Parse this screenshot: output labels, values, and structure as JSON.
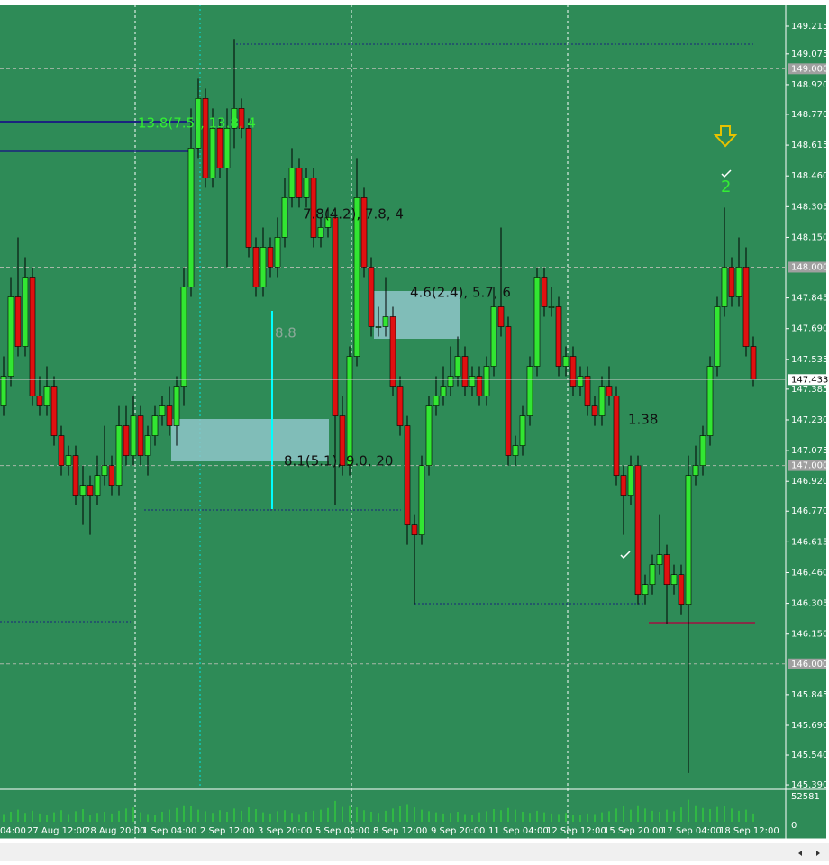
{
  "chart_data": {
    "type": "candlestick",
    "categories": [
      "04:00",
      null,
      null,
      "27 Aug 12:00",
      null,
      null,
      null,
      null,
      null,
      null,
      null,
      "28 Aug 20:00",
      null,
      null,
      null,
      null,
      null,
      null,
      null,
      "1 Sep 04:00",
      null,
      null,
      null,
      null,
      null,
      null,
      null,
      "2 Sep 12:00",
      null,
      null,
      null,
      null,
      null,
      null,
      null,
      "3 Sep 20:00",
      null,
      null,
      null,
      null,
      null,
      null,
      null,
      "5 Sep 04:00",
      null,
      null,
      null,
      null,
      null,
      null,
      null,
      "8 Sep 12:00",
      null,
      null,
      null,
      null,
      null,
      null,
      null,
      "9 Sep 20:00",
      null,
      null,
      null,
      null,
      null,
      null,
      null,
      "11 Sep 04:00",
      null,
      null,
      null,
      null,
      null,
      null,
      null,
      "12 Sep 12:00",
      null,
      null,
      null,
      null,
      null,
      null,
      null,
      "15 Sep 20:00",
      null,
      null,
      null,
      null,
      null,
      null,
      null,
      "17 Sep 04:00",
      null,
      null,
      null,
      null,
      null,
      null,
      null,
      "18 Sep 12:00",
      null,
      null,
      null,
      null,
      null
    ],
    "open": [
      147.3,
      147.45,
      147.85,
      147.6,
      147.95,
      147.35,
      147.3,
      147.4,
      147.15,
      147.0,
      147.05,
      146.85,
      146.9,
      146.85,
      146.95,
      147.0,
      146.9,
      147.2,
      147.05,
      147.25,
      147.05,
      147.15,
      147.25,
      147.3,
      147.2,
      147.4,
      147.9,
      148.6,
      148.85,
      148.45,
      148.7,
      148.5,
      148.7,
      148.8,
      148.7,
      148.1,
      147.9,
      148.1,
      148.0,
      148.15,
      148.35,
      148.5,
      148.35,
      148.45,
      148.15,
      148.2,
      148.25,
      147.25,
      147.0,
      147.55,
      148.35,
      148.0,
      147.7,
      147.7,
      147.75,
      147.4,
      147.2,
      146.7,
      146.65,
      147.0,
      147.3,
      147.35,
      147.4,
      147.45,
      147.55,
      147.4,
      147.45,
      147.35,
      147.5,
      147.8,
      147.7,
      147.05,
      147.1,
      147.25,
      147.5,
      147.95,
      147.8,
      147.8,
      147.5,
      147.55,
      147.4,
      147.45,
      147.3,
      147.25,
      147.4,
      147.35,
      146.95,
      146.85,
      147.0,
      146.35,
      146.4,
      146.5,
      146.55,
      146.4,
      146.45,
      146.3,
      146.95,
      147.0,
      147.15,
      147.5,
      147.8,
      148.0,
      147.85,
      148.0,
      147.6
    ],
    "high": [
      147.55,
      147.95,
      148.15,
      148.05,
      148.0,
      147.45,
      147.5,
      147.45,
      147.2,
      147.1,
      147.1,
      147.0,
      146.95,
      147.05,
      147.2,
      147.05,
      147.3,
      147.3,
      147.35,
      147.3,
      147.2,
      147.3,
      147.35,
      147.4,
      147.45,
      148.0,
      148.8,
      148.95,
      148.9,
      148.8,
      148.75,
      148.8,
      149.15,
      148.85,
      148.75,
      148.15,
      148.2,
      148.15,
      148.25,
      148.45,
      148.6,
      148.55,
      148.5,
      148.5,
      148.25,
      148.3,
      148.3,
      147.35,
      147.6,
      148.55,
      148.4,
      148.05,
      147.8,
      147.95,
      147.8,
      147.45,
      147.25,
      146.75,
      147.05,
      147.35,
      147.45,
      147.5,
      147.6,
      147.65,
      147.6,
      147.5,
      147.5,
      147.55,
      147.9,
      148.2,
      147.75,
      147.15,
      147.3,
      147.55,
      148.0,
      148.0,
      147.9,
      147.85,
      147.6,
      147.6,
      147.5,
      147.5,
      147.35,
      147.45,
      147.5,
      147.4,
      147.0,
      147.05,
      147.05,
      146.45,
      146.55,
      146.75,
      146.6,
      146.5,
      146.5,
      147.05,
      147.1,
      147.2,
      147.55,
      147.85,
      148.3,
      148.05,
      148.15,
      148.1,
      147.65
    ],
    "low": [
      147.25,
      147.4,
      147.55,
      147.55,
      147.3,
      147.25,
      147.25,
      147.1,
      146.95,
      146.95,
      146.8,
      146.7,
      146.65,
      146.8,
      146.9,
      146.85,
      146.85,
      147.0,
      147.0,
      147.0,
      146.95,
      147.1,
      147.2,
      147.15,
      147.1,
      147.3,
      147.85,
      148.55,
      148.4,
      148.4,
      148.45,
      148.0,
      148.6,
      148.65,
      148.05,
      147.85,
      147.85,
      147.95,
      147.95,
      148.1,
      148.3,
      148.3,
      148.3,
      148.1,
      148.1,
      148.15,
      146.8,
      146.95,
      146.95,
      147.5,
      147.95,
      147.65,
      147.65,
      147.65,
      147.35,
      147.15,
      146.6,
      146.3,
      146.6,
      146.95,
      147.25,
      147.3,
      147.35,
      147.4,
      147.35,
      147.35,
      147.3,
      147.3,
      147.45,
      147.65,
      147.0,
      147.0,
      147.05,
      147.2,
      147.45,
      147.75,
      147.75,
      147.45,
      147.45,
      147.35,
      147.35,
      147.25,
      147.2,
      147.2,
      147.3,
      146.9,
      146.65,
      146.8,
      146.3,
      146.3,
      146.35,
      146.45,
      146.2,
      146.35,
      146.25,
      145.45,
      146.9,
      146.95,
      147.1,
      147.45,
      147.75,
      147.8,
      147.8,
      147.55,
      147.4
    ],
    "close": [
      147.45,
      147.85,
      147.6,
      147.95,
      147.35,
      147.3,
      147.4,
      147.15,
      147.0,
      147.05,
      146.85,
      146.9,
      146.85,
      146.95,
      147.0,
      146.9,
      147.2,
      147.05,
      147.25,
      147.05,
      147.15,
      147.25,
      147.3,
      147.2,
      147.4,
      147.9,
      148.6,
      148.85,
      148.45,
      148.7,
      148.5,
      148.7,
      148.8,
      148.7,
      148.1,
      147.9,
      148.1,
      148.0,
      148.15,
      148.35,
      148.5,
      148.35,
      148.45,
      148.15,
      148.2,
      148.25,
      147.25,
      147.0,
      147.55,
      148.35,
      148.0,
      147.7,
      147.7,
      147.75,
      147.4,
      147.2,
      146.7,
      146.65,
      147.0,
      147.3,
      147.35,
      147.4,
      147.45,
      147.55,
      147.4,
      147.45,
      147.35,
      147.5,
      147.8,
      147.7,
      147.05,
      147.1,
      147.25,
      147.5,
      147.95,
      147.8,
      147.8,
      147.5,
      147.55,
      147.4,
      147.45,
      147.3,
      147.25,
      147.4,
      147.35,
      146.95,
      146.85,
      147.0,
      146.35,
      146.4,
      146.5,
      146.55,
      146.4,
      146.45,
      146.3,
      146.95,
      147.0,
      147.15,
      147.5,
      147.8,
      148.0,
      147.85,
      148.0,
      147.6,
      147.433
    ],
    "volume": [
      14000,
      18000,
      22000,
      16000,
      20000,
      15000,
      12000,
      17000,
      21000,
      14000,
      19000,
      23000,
      13000,
      16000,
      18000,
      15000,
      20000,
      24000,
      26000,
      17000,
      14000,
      12000,
      18000,
      22000,
      25000,
      30000,
      28000,
      22000,
      19000,
      16000,
      21000,
      18000,
      24000,
      20000,
      26000,
      23000,
      17000,
      15000,
      19000,
      21000,
      16000,
      14000,
      18000,
      20000,
      22000,
      25000,
      38000,
      27000,
      30000,
      26000,
      21000,
      18000,
      16000,
      20000,
      24000,
      28000,
      32000,
      26000,
      22000,
      19000,
      17000,
      15000,
      16000,
      18000,
      14000,
      13000,
      17000,
      19000,
      23000,
      21000,
      25000,
      22000,
      18000,
      16000,
      20000,
      17000,
      15000,
      14000,
      16000,
      13000,
      12000,
      15000,
      14000,
      17000,
      19000,
      24000,
      28000,
      22000,
      30000,
      24000,
      20000,
      18000,
      22000,
      19000,
      26000,
      40000,
      30000,
      25000,
      23000,
      27000,
      29000,
      24000,
      20000,
      22000,
      15000
    ],
    "up_color": "#32e632",
    "down_color": "#e01010",
    "background": "#2e8b57",
    "volume_color": "#32e632",
    "ylim": [
      145.372,
      149.324
    ],
    "yticks": [
      149.215,
      149.075,
      {
        "value": 148.92,
        "label": "148.920"
      },
      {
        "value": 148.77,
        "label": "148.770"
      },
      148.615,
      {
        "value": 148.46,
        "label": "148.460"
      },
      148.305,
      {
        "value": 148.15,
        "label": "148.150"
      },
      147.845,
      {
        "value": 147.69,
        "label": "147.690"
      },
      147.535,
      147.385,
      {
        "value": 147.23,
        "label": "147.230"
      },
      147.075,
      {
        "value": 146.92,
        "label": "146.920"
      },
      {
        "value": 146.77,
        "label": "146.770"
      },
      146.615,
      {
        "value": 146.46,
        "label": "146.460"
      },
      146.305,
      {
        "value": 146.15,
        "label": "146.150"
      },
      145.845,
      {
        "value": 145.69,
        "label": "145.690"
      },
      {
        "value": 145.54,
        "label": "145.540"
      },
      {
        "value": 145.39,
        "label": "145.390"
      }
    ],
    "round_levels": [
      {
        "value": 149,
        "label": "149.000"
      },
      {
        "value": 148,
        "label": "148.000"
      },
      {
        "value": 147,
        "label": "147.000"
      },
      {
        "value": 146,
        "label": "146.000"
      }
    ],
    "last_price": {
      "value": 147.433,
      "label": "147.433"
    },
    "vlim": [
      0,
      52581
    ],
    "vticks": [
      52581,
      0
    ],
    "annotations": [
      "13.8(7.5), 13.8, 4",
      "7.8(4.2), 7.8, 4",
      "4.6(2.4), 5.7, 6",
      "8.1(5.1), 9.0, 20",
      "8.8",
      "1.38",
      "2"
    ]
  }
}
